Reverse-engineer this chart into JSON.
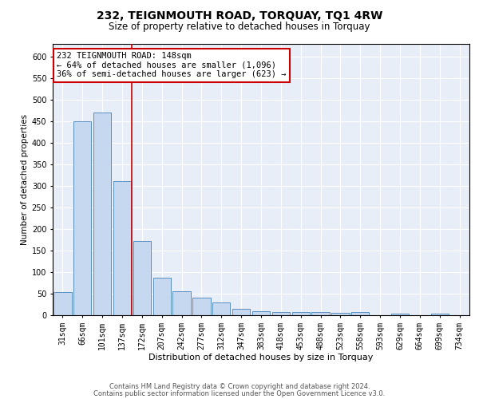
{
  "title": "232, TEIGNMOUTH ROAD, TORQUAY, TQ1 4RW",
  "subtitle": "Size of property relative to detached houses in Torquay",
  "xlabel": "Distribution of detached houses by size in Torquay",
  "ylabel": "Number of detached properties",
  "categories": [
    "31sqm",
    "66sqm",
    "101sqm",
    "137sqm",
    "172sqm",
    "207sqm",
    "242sqm",
    "277sqm",
    "312sqm",
    "347sqm",
    "383sqm",
    "418sqm",
    "453sqm",
    "488sqm",
    "523sqm",
    "558sqm",
    "593sqm",
    "629sqm",
    "664sqm",
    "699sqm",
    "734sqm"
  ],
  "values": [
    53,
    450,
    470,
    312,
    172,
    88,
    55,
    40,
    30,
    15,
    9,
    8,
    8,
    7,
    6,
    8,
    0,
    3,
    0,
    3,
    0
  ],
  "bar_color": "#c5d8f0",
  "bar_edge_color": "#5a8fc0",
  "red_line_index": 3,
  "red_line_color": "#cc0000",
  "annotation_text_line1": "232 TEIGNMOUTH ROAD: 148sqm",
  "annotation_text_line2": "← 64% of detached houses are smaller (1,096)",
  "annotation_text_line3": "36% of semi-detached houses are larger (623) →",
  "annotation_box_color": "#ffffff",
  "annotation_box_edge": "#cc0000",
  "ylim": [
    0,
    630
  ],
  "yticks": [
    0,
    50,
    100,
    150,
    200,
    250,
    300,
    350,
    400,
    450,
    500,
    550,
    600
  ],
  "background_color": "#e8eef8",
  "footer_line1": "Contains HM Land Registry data © Crown copyright and database right 2024.",
  "footer_line2": "Contains public sector information licensed under the Open Government Licence v3.0.",
  "title_fontsize": 10,
  "subtitle_fontsize": 8.5,
  "xlabel_fontsize": 8,
  "ylabel_fontsize": 7.5,
  "tick_fontsize": 7,
  "footer_fontsize": 6,
  "annotation_fontsize": 7.5
}
